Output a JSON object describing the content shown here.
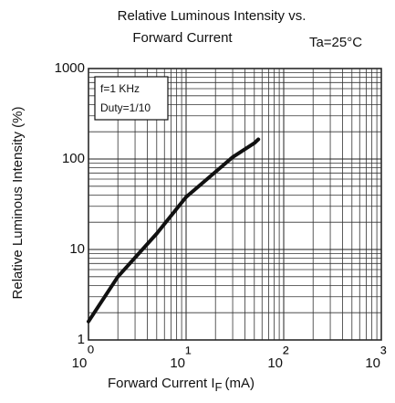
{
  "chart_data": {
    "type": "line",
    "title": [
      "Relative Luminous Intensity vs.",
      "Forward Current"
    ],
    "annotation": "Ta=25°C",
    "note_box": [
      "f=1 KHz",
      "Duty=1/10"
    ],
    "xlabel": {
      "text": "Forward Current I",
      "subscript": "F",
      "unit": "(mA)"
    },
    "ylabel": "Relative Luminous Intensity (%)",
    "x": [
      1,
      2,
      5,
      10,
      20,
      30,
      50,
      55
    ],
    "series": [
      {
        "color": "#111111",
        "values": [
          1.6,
          5,
          15,
          38,
          72,
          105,
          150,
          165
        ]
      }
    ],
    "xscale": "log",
    "yscale": "log",
    "xlim": [
      1,
      1000
    ],
    "ylim": [
      1,
      1000
    ],
    "xticks": [
      {
        "value": 1,
        "label": "10⁰"
      },
      {
        "value": 10,
        "label": "10¹"
      },
      {
        "value": 100,
        "label": "10²"
      },
      {
        "value": 1000,
        "label": "10³"
      }
    ],
    "yticks": [
      1,
      10,
      100,
      1000
    ],
    "grid": "major-minor"
  }
}
